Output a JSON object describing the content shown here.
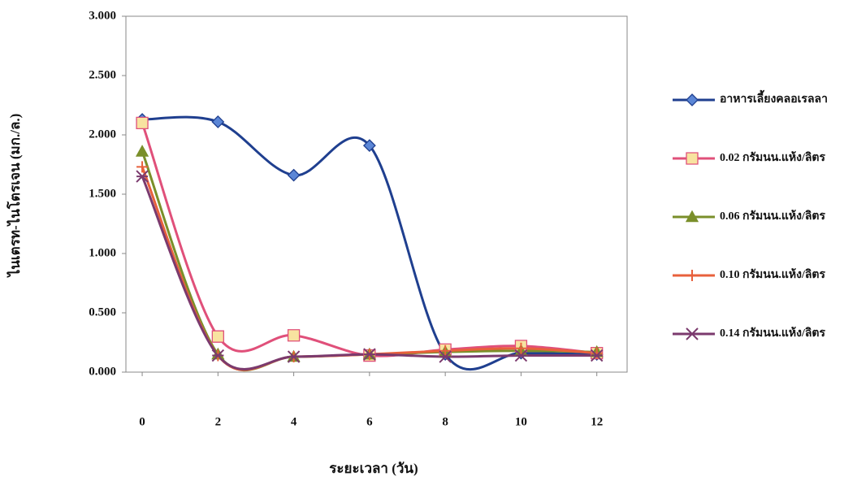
{
  "chart_data": {
    "type": "line",
    "x_label": "ระยะเวลา (วัน)",
    "y_label": "ไนเตรท-ไนโตรเจน (มก./ล.)",
    "x": [
      0,
      2,
      4,
      6,
      8,
      10,
      12
    ],
    "xlim": [
      -0.43,
      12.8
    ],
    "xticks": [
      0,
      2,
      4,
      6,
      8,
      10,
      12
    ],
    "ylim": [
      0,
      3
    ],
    "yticks": [
      {
        "value": 0,
        "label": "0.000"
      },
      {
        "value": 0.5,
        "label": "0.500"
      },
      {
        "value": 1,
        "label": "1.000"
      },
      {
        "value": 1.5,
        "label": "1.500"
      },
      {
        "value": 2,
        "label": "2.000"
      },
      {
        "value": 2.5,
        "label": "2.500"
      },
      {
        "value": 3,
        "label": "3.000"
      }
    ],
    "grid": false,
    "smooth": true,
    "legend": "right",
    "series": [
      {
        "name": "อาหารเลี้ยงคลอเรลลา",
        "color": "#1f3f8f",
        "marker": "diamond",
        "marker_fill": "#5b86d6",
        "values": [
          2.13,
          2.11,
          1.66,
          1.91,
          0.15,
          0.16,
          0.15
        ]
      },
      {
        "name": "0.02 กรัมนน.แห้ง/ลิตร",
        "color": "#e0507a",
        "marker": "square",
        "marker_fill": "#f8e3a0",
        "values": [
          2.1,
          0.3,
          0.31,
          0.14,
          0.19,
          0.22,
          0.16
        ]
      },
      {
        "name": "0.06 กรัมนน.แห้ง/ลิตร",
        "color": "#7a8f2a",
        "marker": "triangle",
        "marker_fill": "#7a8f2a",
        "values": [
          1.86,
          0.15,
          0.13,
          0.15,
          0.17,
          0.18,
          0.17
        ]
      },
      {
        "name": "0.10 กรัมนน.แห้ง/ลิตร",
        "color": "#e8603c",
        "marker": "plus",
        "marker_fill": "#e8603c",
        "values": [
          1.73,
          0.14,
          0.13,
          0.15,
          0.18,
          0.2,
          0.16
        ]
      },
      {
        "name": "0.14 กรัมนน.แห้ง/ลิตร",
        "color": "#7b3a6e",
        "marker": "star",
        "marker_fill": "#7b3a6e",
        "values": [
          1.65,
          0.14,
          0.13,
          0.15,
          0.13,
          0.14,
          0.14
        ]
      }
    ]
  }
}
